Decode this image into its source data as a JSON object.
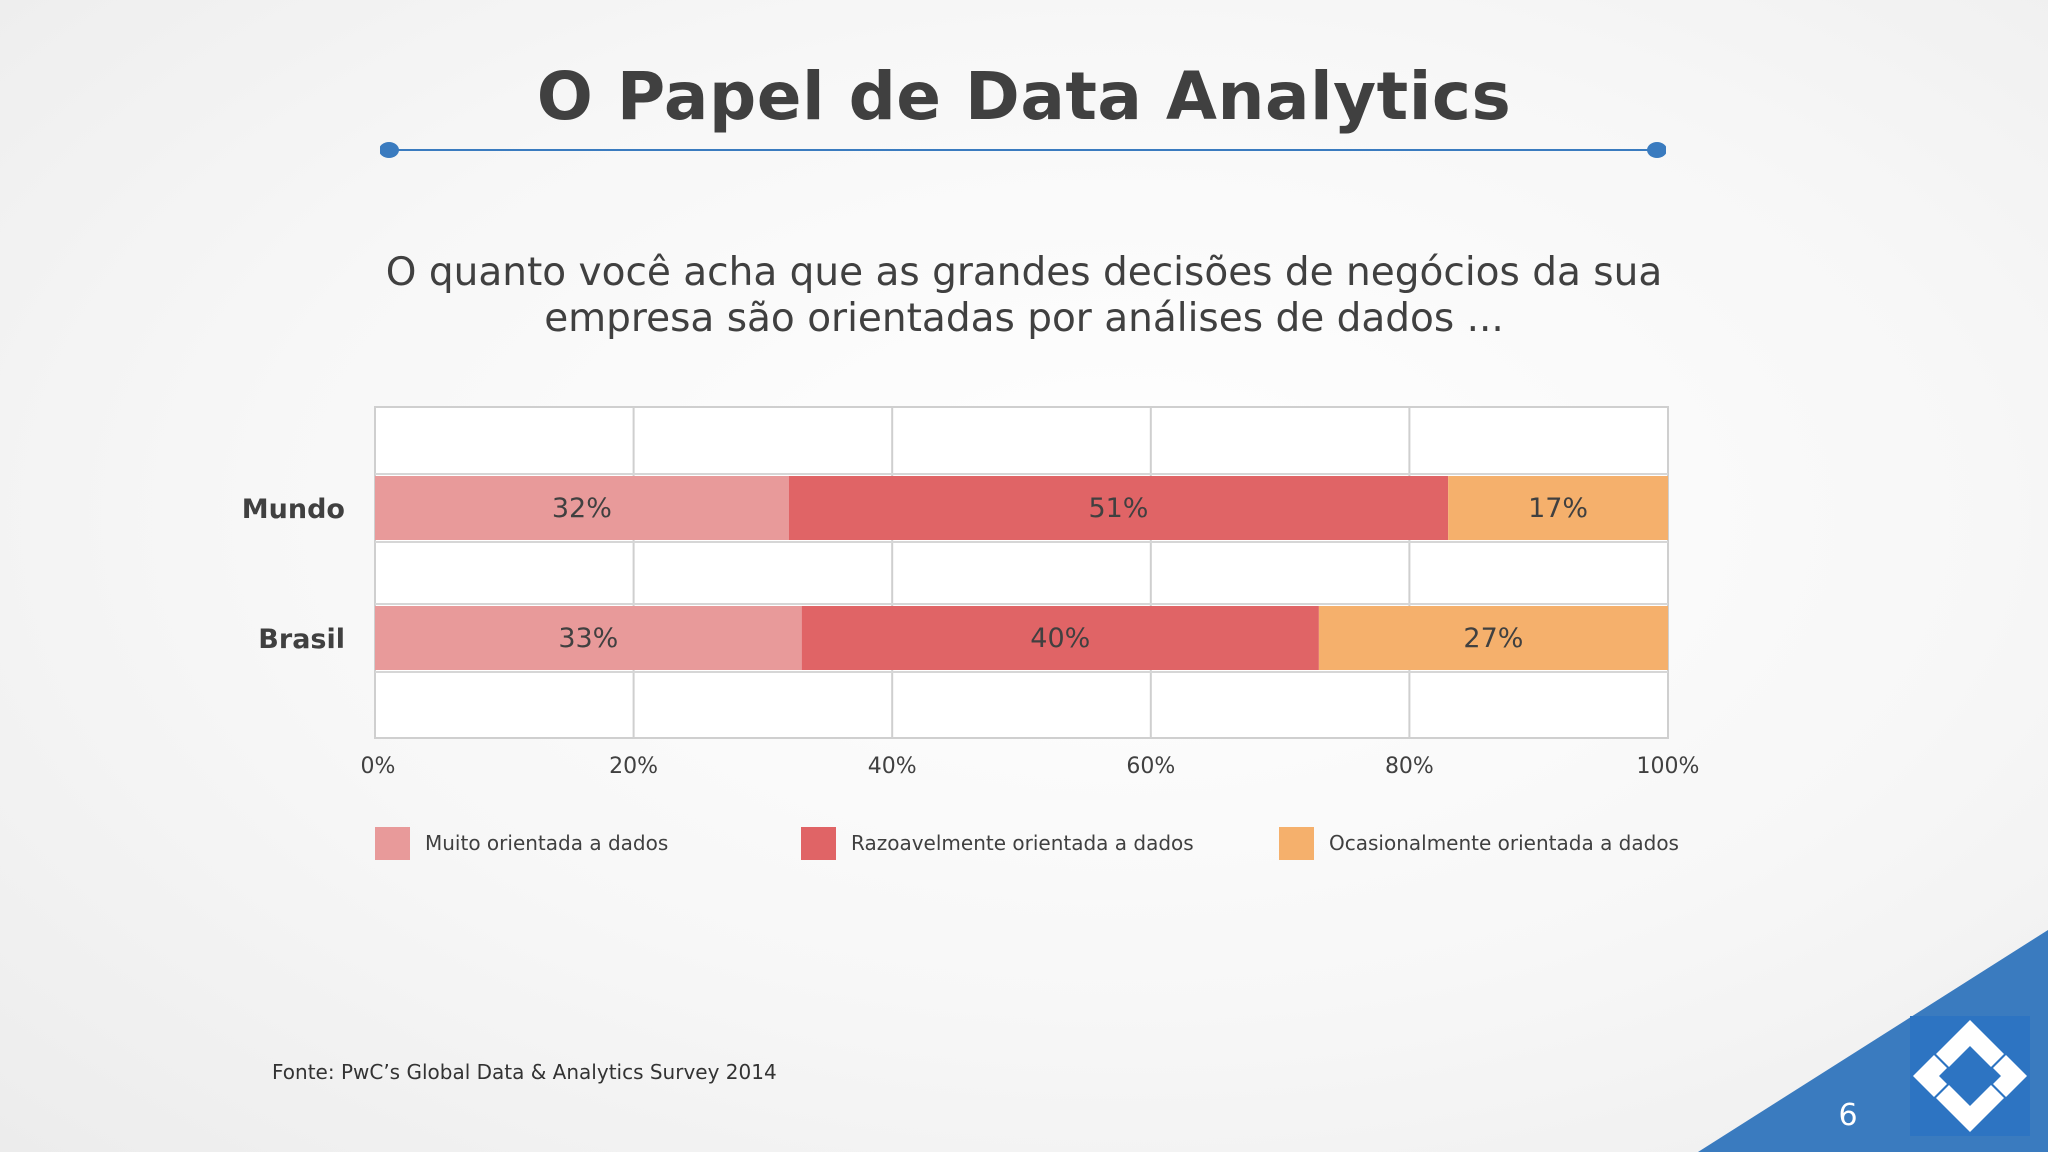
{
  "slide": {
    "title": "O Papel de Data Analytics",
    "question": "O quanto você acha que as grandes decisões de negócios da sua empresa são orientadas por análises de dados ...",
    "source": "Fonte: PwC’s Global Data & Analytics Survey 2014",
    "page_number": "6",
    "accent_color": "#3a7bbf"
  },
  "chart_data": {
    "type": "bar",
    "orientation": "horizontal",
    "stacked": true,
    "categories": [
      "Mundo",
      "Brasil"
    ],
    "series": [
      {
        "name": "Muito orientada a dados",
        "values": [
          32,
          33
        ],
        "labels": [
          "32%",
          "33%"
        ],
        "color": "#e89a9a"
      },
      {
        "name": "Razoavelmente orientada a dados",
        "values": [
          51,
          40
        ],
        "labels": [
          "51%",
          "40%"
        ],
        "color": "#e06466"
      },
      {
        "name": "Ocasionalmente orientada a dados",
        "values": [
          17,
          27
        ],
        "labels": [
          "17%",
          "27%"
        ],
        "color": "#f5b06c"
      }
    ],
    "xlim": [
      0,
      100
    ],
    "xticks": [
      "0%",
      "20%",
      "40%",
      "60%",
      "80%",
      "100%"
    ],
    "grid": true,
    "legend_position": "bottom"
  }
}
